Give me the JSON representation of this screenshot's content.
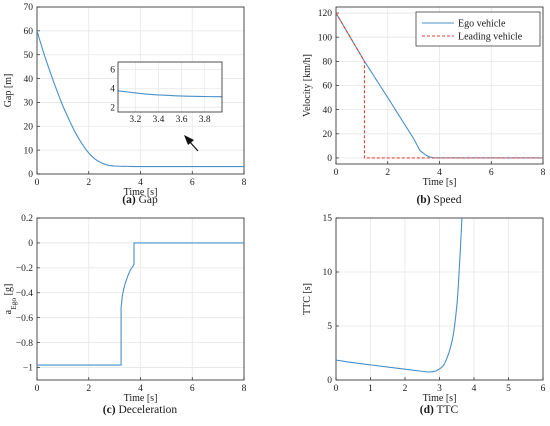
{
  "colors": {
    "ego": "#4a90c8",
    "leading": "#e8413a",
    "grid": "#e6e6e6",
    "axis": "#262626"
  },
  "chart_data": [
    {
      "id": "gap",
      "type": "line",
      "caption_tag": "(a)",
      "caption_text": " Gap",
      "xlabel": "Time [s]",
      "ylabel": "Gap [m]",
      "xlim": [
        0,
        8
      ],
      "ylim": [
        0,
        70
      ],
      "xticks": [
        0,
        2,
        4,
        6,
        8
      ],
      "yticks": [
        0,
        10,
        20,
        30,
        40,
        50,
        60,
        70
      ],
      "grid": true,
      "series": [
        {
          "color_key": "ego",
          "x": [
            0,
            0.25,
            0.5,
            0.75,
            1.0,
            1.25,
            1.5,
            1.75,
            2.0,
            2.25,
            2.5,
            2.75,
            3.0,
            3.1,
            3.25,
            3.5,
            4.0,
            5.0,
            6.0,
            7.0,
            8.0
          ],
          "y": [
            60,
            51,
            43,
            35.5,
            28.5,
            22.5,
            17,
            12.5,
            8.8,
            6.2,
            4.6,
            3.7,
            3.35,
            3.3,
            3.25,
            3.2,
            3.1,
            3.1,
            3.1,
            3.1,
            3.1
          ]
        }
      ],
      "inset": {
        "xlim": [
          3.05,
          3.95
        ],
        "ylim": [
          1.5,
          6.8
        ],
        "xticks": [
          3.2,
          3.4,
          3.6,
          3.8
        ],
        "yticks": [
          2,
          4,
          6
        ],
        "series": {
          "color_key": "ego",
          "x": [
            3.05,
            3.15,
            3.25,
            3.35,
            3.45,
            3.55,
            3.65,
            3.75,
            3.85,
            3.95
          ],
          "y": [
            3.75,
            3.6,
            3.45,
            3.35,
            3.28,
            3.22,
            3.18,
            3.15,
            3.13,
            3.12
          ]
        }
      }
    },
    {
      "id": "speed",
      "type": "line",
      "caption_tag": "(b)",
      "caption_text": " Speed",
      "xlabel": "Time [s]",
      "ylabel": "Velocity [km/h]",
      "xlim": [
        0,
        8
      ],
      "ylim": [
        -5,
        125
      ],
      "xticks": [
        0,
        2,
        4,
        6,
        8
      ],
      "yticks": [
        0,
        20,
        40,
        60,
        80,
        100,
        120
      ],
      "grid": true,
      "legend": "top-right",
      "series": [
        {
          "name": "Ego vehicle",
          "color_key": "ego",
          "dash": "none",
          "x": [
            0,
            1.1,
            2.0,
            3.0,
            3.25,
            3.5,
            3.6,
            3.7,
            3.8,
            4.0,
            8.0
          ],
          "y": [
            120,
            80,
            50,
            16,
            6,
            2,
            1,
            0.5,
            0,
            0,
            0
          ]
        },
        {
          "name": "Leading vehicle",
          "color_key": "leading",
          "dash": "3,2",
          "x": [
            0,
            1.1,
            1.1,
            8.0
          ],
          "y": [
            120,
            80,
            0,
            0
          ]
        }
      ]
    },
    {
      "id": "decel",
      "type": "line",
      "caption_tag": "(c)",
      "caption_text": " Deceleration",
      "xlabel": "Time [s]",
      "ylabel_main": "a",
      "ylabel_sub": "Ego",
      "ylabel_unit": " [g]",
      "xlim": [
        0,
        8
      ],
      "ylim": [
        -1.1,
        0.2
      ],
      "xticks": [
        0,
        2,
        4,
        6,
        8
      ],
      "yticks": [
        -1,
        -0.8,
        -0.6,
        -0.4,
        -0.2,
        0,
        0.2
      ],
      "ytick_labels": [
        "−1",
        "−0.8",
        "−0.6",
        "−0.4",
        "−0.2",
        "0",
        "0.2"
      ],
      "grid": true,
      "series": [
        {
          "color_key": "ego",
          "x": [
            0,
            3.25,
            3.25,
            3.3,
            3.4,
            3.5,
            3.6,
            3.7,
            3.75,
            3.75,
            8.0
          ],
          "y": [
            -0.98,
            -0.98,
            -0.52,
            -0.42,
            -0.33,
            -0.27,
            -0.22,
            -0.19,
            -0.17,
            0,
            0
          ]
        }
      ]
    },
    {
      "id": "ttc",
      "type": "line",
      "caption_tag": "(d)",
      "caption_text": " TTC",
      "xlabel": "Time [s]",
      "ylabel": "TTC [s]",
      "xlim": [
        0,
        6
      ],
      "ylim": [
        0,
        15
      ],
      "xticks": [
        0,
        1,
        2,
        3,
        4,
        5,
        6
      ],
      "yticks": [
        0,
        5,
        10,
        15
      ],
      "grid": true,
      "series": [
        {
          "color_key": "ego",
          "x": [
            0,
            0.5,
            1.0,
            1.5,
            2.0,
            2.5,
            2.7,
            2.9,
            3.1,
            3.2,
            3.3,
            3.4,
            3.5,
            3.55,
            3.6,
            3.65
          ],
          "y": [
            1.85,
            1.6,
            1.4,
            1.2,
            1.0,
            0.8,
            0.75,
            0.85,
            1.3,
            1.9,
            2.8,
            4.2,
            6.8,
            9.0,
            11.8,
            15
          ]
        }
      ]
    }
  ]
}
